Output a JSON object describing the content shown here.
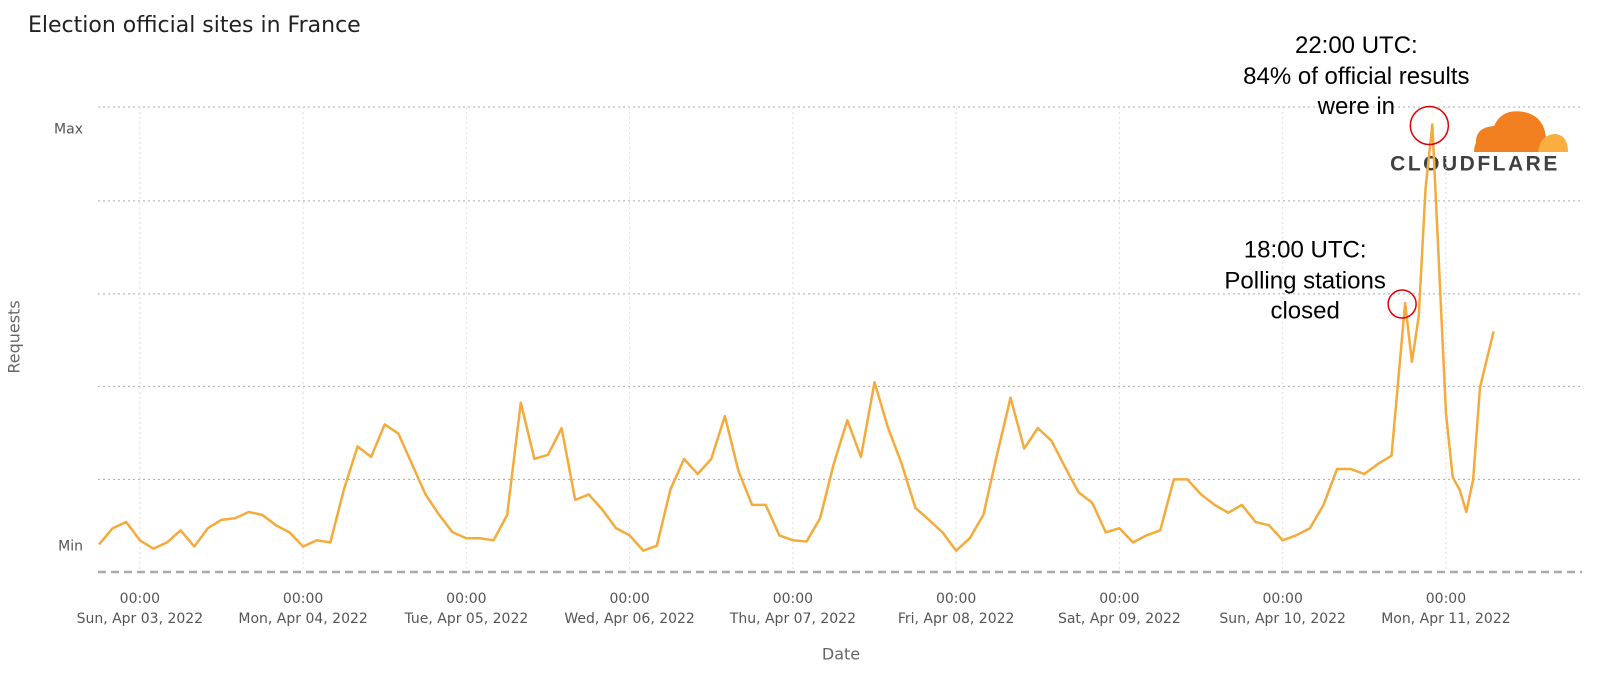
{
  "chart_data": {
    "type": "line",
    "title": "Election official sites in France",
    "x_label": "Date",
    "y_label": "Requests",
    "color": "#f5aa3c",
    "grid": true,
    "logo": "CLOUDFLARE",
    "xlim": [
      "2022-04-02T17:51",
      "2022-04-11T20:00"
    ],
    "xticks": [
      {
        "value": "2022-04-03T00:00",
        "label": [
          "00:00",
          "Sun, Apr 03, 2022"
        ]
      },
      {
        "value": "2022-04-04T00:00",
        "label": [
          "00:00",
          "Mon, Apr 04, 2022"
        ]
      },
      {
        "value": "2022-04-05T00:00",
        "label": [
          "00:00",
          "Tue, Apr 05, 2022"
        ]
      },
      {
        "value": "2022-04-06T00:00",
        "label": [
          "00:00",
          "Wed, Apr 06, 2022"
        ]
      },
      {
        "value": "2022-04-07T00:00",
        "label": [
          "00:00",
          "Thu, Apr 07, 2022"
        ]
      },
      {
        "value": "2022-04-08T00:00",
        "label": [
          "00:00",
          "Fri, Apr 08, 2022"
        ]
      },
      {
        "value": "2022-04-09T00:00",
        "label": [
          "00:00",
          "Sat, Apr 09, 2022"
        ]
      },
      {
        "value": "2022-04-10T00:00",
        "label": [
          "00:00",
          "Sun, Apr 10, 2022"
        ]
      },
      {
        "value": "2022-04-11T00:00",
        "label": [
          "00:00",
          "Mon, Apr 11, 2022"
        ]
      }
    ],
    "ylim": [
      -6.1,
      105.4
    ],
    "yticks": [
      {
        "value": 0,
        "label": "Min"
      },
      {
        "value": 100,
        "label": "Max"
      }
    ],
    "ygrid": [
      16.1,
      38.4,
      60.6,
      82.9,
      105.4
    ],
    "x": [
      "2022-04-02T18:00",
      "2022-04-02T20:00",
      "2022-04-02T22:00",
      "2022-04-03T00:00",
      "2022-04-03T02:00",
      "2022-04-03T04:00",
      "2022-04-03T06:00",
      "2022-04-03T08:00",
      "2022-04-03T10:00",
      "2022-04-03T12:00",
      "2022-04-03T14:00",
      "2022-04-03T16:00",
      "2022-04-03T18:00",
      "2022-04-03T20:00",
      "2022-04-03T22:00",
      "2022-04-04T00:00",
      "2022-04-04T02:00",
      "2022-04-04T04:00",
      "2022-04-04T06:00",
      "2022-04-04T08:00",
      "2022-04-04T10:00",
      "2022-04-04T12:00",
      "2022-04-04T14:00",
      "2022-04-04T16:00",
      "2022-04-04T18:00",
      "2022-04-04T20:00",
      "2022-04-04T22:00",
      "2022-04-05T00:00",
      "2022-04-05T02:00",
      "2022-04-05T04:00",
      "2022-04-05T06:00",
      "2022-04-05T08:00",
      "2022-04-05T10:00",
      "2022-04-05T12:00",
      "2022-04-05T14:00",
      "2022-04-05T16:00",
      "2022-04-05T18:00",
      "2022-04-05T20:00",
      "2022-04-05T22:00",
      "2022-04-06T00:00",
      "2022-04-06T02:00",
      "2022-04-06T04:00",
      "2022-04-06T06:00",
      "2022-04-06T08:00",
      "2022-04-06T10:00",
      "2022-04-06T12:00",
      "2022-04-06T14:00",
      "2022-04-06T16:00",
      "2022-04-06T18:00",
      "2022-04-06T20:00",
      "2022-04-06T22:00",
      "2022-04-07T00:00",
      "2022-04-07T02:00",
      "2022-04-07T04:00",
      "2022-04-07T06:00",
      "2022-04-07T08:00",
      "2022-04-07T10:00",
      "2022-04-07T12:00",
      "2022-04-07T14:00",
      "2022-04-07T16:00",
      "2022-04-07T18:00",
      "2022-04-07T20:00",
      "2022-04-07T22:00",
      "2022-04-08T00:00",
      "2022-04-08T02:00",
      "2022-04-08T04:00",
      "2022-04-08T06:00",
      "2022-04-08T08:00",
      "2022-04-08T10:00",
      "2022-04-08T12:00",
      "2022-04-08T14:00",
      "2022-04-08T16:00",
      "2022-04-08T18:00",
      "2022-04-08T20:00",
      "2022-04-08T22:00",
      "2022-04-09T00:00",
      "2022-04-09T02:00",
      "2022-04-09T04:00",
      "2022-04-09T06:00",
      "2022-04-09T08:00",
      "2022-04-09T10:00",
      "2022-04-09T12:00",
      "2022-04-09T14:00",
      "2022-04-09T16:00",
      "2022-04-09T18:00",
      "2022-04-09T20:00",
      "2022-04-09T22:00",
      "2022-04-10T00:00",
      "2022-04-10T02:00",
      "2022-04-10T04:00",
      "2022-04-10T06:00",
      "2022-04-10T08:00",
      "2022-04-10T10:00",
      "2022-04-10T12:00",
      "2022-04-10T14:00",
      "2022-04-10T16:00",
      "2022-04-10T18:00",
      "2022-04-10T19:00",
      "2022-04-10T20:00",
      "2022-04-10T21:00",
      "2022-04-10T22:00",
      "2022-04-11T00:00",
      "2022-04-11T01:00",
      "2022-04-11T02:00",
      "2022-04-11T03:00",
      "2022-04-11T04:00",
      "2022-04-11T05:00",
      "2022-04-11T07:00"
    ],
    "values": [
      0.5,
      4.4,
      5.9,
      1.5,
      -0.5,
      1.0,
      3.9,
      0,
      4.4,
      6.4,
      6.8,
      8.3,
      7.6,
      5.1,
      3.4,
      0,
      1.5,
      1.0,
      13.7,
      24.0,
      21.5,
      29.3,
      27.1,
      19.8,
      12.5,
      7.6,
      3.4,
      2.0,
      2.0,
      1.5,
      7.6,
      34.5,
      21.0,
      22.0,
      28.4,
      11.2,
      12.5,
      8.8,
      4.4,
      2.7,
      -1.0,
      0.2,
      13.7,
      21.0,
      17.4,
      21.0,
      31.3,
      18.1,
      10.0,
      10.0,
      2.7,
      1.5,
      1.2,
      6.8,
      19.8,
      30.3,
      21.5,
      39.4,
      28.4,
      19.8,
      9.3,
      6.4,
      3.4,
      -1.0,
      2.0,
      7.6,
      22.0,
      35.7,
      23.5,
      28.4,
      25.4,
      19.1,
      13.0,
      10.5,
      3.4,
      4.4,
      1.0,
      2.7,
      3.9,
      16.1,
      16.1,
      12.5,
      10.0,
      8.1,
      10.0,
      5.9,
      5.1,
      1.5,
      2.7,
      4.4,
      10.0,
      18.6,
      18.6,
      17.4,
      19.8,
      21.8,
      58.4,
      44.3,
      55.3,
      85.8,
      101.2,
      32.0,
      16.6,
      13.7,
      8.3,
      16.1,
      38.1,
      51.6
    ],
    "annotations": [
      {
        "text": [
          "18:00 UTC:",
          "Polling stations",
          "closed"
        ],
        "x": "2022-04-10T18:00",
        "y": 58.4
      },
      {
        "text": [
          "22:00 UTC:",
          "84% of official results",
          "were in"
        ],
        "x": "2022-04-10T22:00",
        "y": 101.2
      }
    ]
  }
}
